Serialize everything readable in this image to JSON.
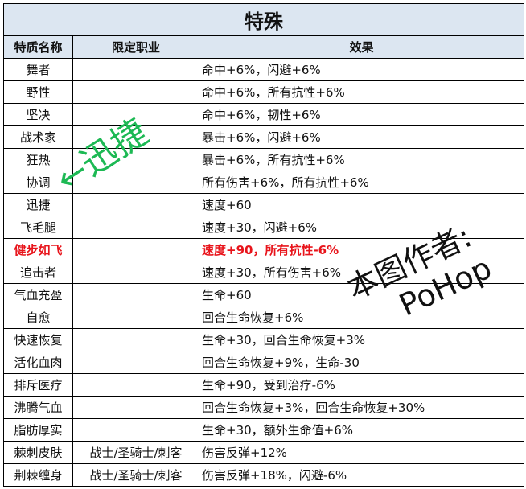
{
  "title": "特殊",
  "headers": [
    "特质名称",
    "限定职业",
    "效果"
  ],
  "highlight_color": "#e8141b",
  "header_bg": "#dce6f1",
  "rows": [
    {
      "name": "舞者",
      "job": "",
      "effect": "命中+6%，闪避+6%"
    },
    {
      "name": "野性",
      "job": "",
      "effect": "命中+6%，所有抗性+6%"
    },
    {
      "name": "坚决",
      "job": "",
      "effect": "命中+6%，韧性+6%"
    },
    {
      "name": "战术家",
      "job": "",
      "effect": "暴击+6%，闪避+6%"
    },
    {
      "name": "狂热",
      "job": "",
      "effect": "暴击+6%，所有抗性+6%"
    },
    {
      "name": "协调",
      "job": "",
      "effect": "所有伤害+6%，所有抗性+6%"
    },
    {
      "name": "迅捷",
      "job": "",
      "effect": "速度+60"
    },
    {
      "name": "飞毛腿",
      "job": "",
      "effect": "速度+30，闪避+6%"
    },
    {
      "name": "健步如飞",
      "job": "",
      "effect": "速度+90，所有抗性-6%",
      "highlighted": true
    },
    {
      "name": "追击者",
      "job": "",
      "effect": "速度+30，所有伤害+6%"
    },
    {
      "name": "气血充盈",
      "job": "",
      "effect": "生命+60"
    },
    {
      "name": "自愈",
      "job": "",
      "effect": "回合生命恢复+6%"
    },
    {
      "name": "快速恢复",
      "job": "",
      "effect": "生命+30，回合生命恢复+3%"
    },
    {
      "name": "活化血肉",
      "job": "",
      "effect": "回合生命恢复+9%，生命-30"
    },
    {
      "name": "排斥医疗",
      "job": "",
      "effect": "生命+90，受到治疗-6%"
    },
    {
      "name": "沸腾气血",
      "job": "",
      "effect": "回合生命恢复+3%，回合生命恢复+30%"
    },
    {
      "name": "脂肪厚实",
      "job": "",
      "effect": "生命+30，额外生命值+6%"
    },
    {
      "name": "棘刺皮肤",
      "job": "战士/圣骑士/刺客",
      "effect": "伤害反弹+12%"
    },
    {
      "name": "荆棘缠身",
      "job": "战士/圣骑士/刺客",
      "effect": "伤害反弹+18%，闪避-6%"
    }
  ],
  "annotations": {
    "green_arrow": "←迅捷",
    "author_line1": "本图作者:",
    "author_line2": "PoHop"
  }
}
